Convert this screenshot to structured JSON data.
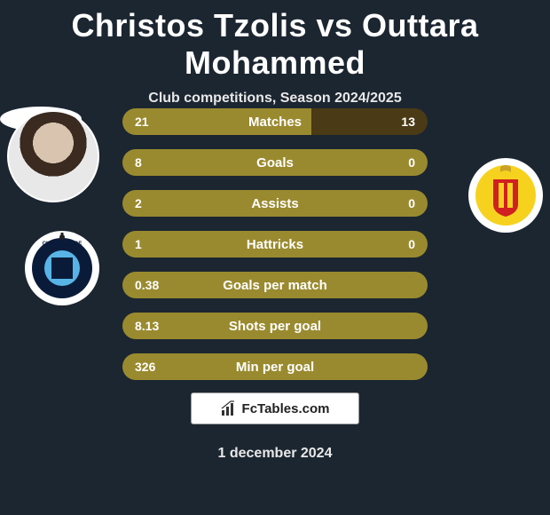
{
  "title": "Christos Tzolis vs Outtara Mohammed",
  "subtitle": "Club competitions, Season 2024/2025",
  "date": "1 december 2024",
  "watermark_text": "FcTables.com",
  "colors": {
    "background": "#1c2631",
    "bar_olive": "#9a8a2f",
    "bar_brown_dark": "#4a3a15",
    "text": "#ffffff"
  },
  "left_club": {
    "name": "Club Brugge",
    "crest_bg": "#0a1b3a",
    "crest_accent": "#58b4e6",
    "crest_text": "CLUB BRUGGE"
  },
  "right_club": {
    "name": "KV Mechelen",
    "crest_bg": "#f6d21f",
    "crest_accent": "#d02020",
    "crest_ring": "#f6d21f"
  },
  "rows": [
    {
      "label": "Matches",
      "left": "21",
      "right": "13",
      "left_color": "#9a8a2f",
      "right_color": "#4a3a15",
      "left_pct": 62,
      "right_pct": 38
    },
    {
      "label": "Goals",
      "left": "8",
      "right": "0",
      "left_color": "#9a8a2f",
      "right_color": "#4a3a15",
      "left_pct": 100,
      "right_pct": 0
    },
    {
      "label": "Assists",
      "left": "2",
      "right": "0",
      "left_color": "#9a8a2f",
      "right_color": "#4a3a15",
      "left_pct": 100,
      "right_pct": 0
    },
    {
      "label": "Hattricks",
      "left": "1",
      "right": "0",
      "left_color": "#9a8a2f",
      "right_color": "#4a3a15",
      "left_pct": 100,
      "right_pct": 0
    },
    {
      "label": "Goals per match",
      "left": "0.38",
      "right": "",
      "left_color": "#9a8a2f",
      "right_color": "#9a8a2f",
      "left_pct": 100,
      "right_pct": 0
    },
    {
      "label": "Shots per goal",
      "left": "8.13",
      "right": "",
      "left_color": "#9a8a2f",
      "right_color": "#9a8a2f",
      "left_pct": 100,
      "right_pct": 0
    },
    {
      "label": "Min per goal",
      "left": "326",
      "right": "",
      "left_color": "#9a8a2f",
      "right_color": "#9a8a2f",
      "left_pct": 100,
      "right_pct": 0
    }
  ]
}
